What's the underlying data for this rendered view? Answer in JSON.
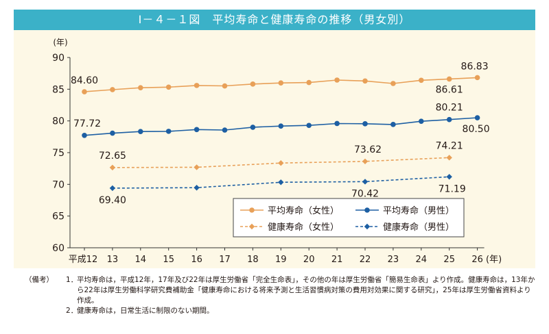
{
  "title": "Ⅰ－４－１図　平均寿命と健康寿命の推移（男女別）",
  "chart_data": {
    "type": "line",
    "title": "平均寿命と健康寿命の推移（男女別）",
    "y_unit": "(年)",
    "x_unit": "(年)",
    "ylim": [
      60,
      90
    ],
    "yticks": [
      "60",
      "65",
      "70",
      "75",
      "80",
      "85",
      "90"
    ],
    "categories": [
      "平成12",
      "13",
      "14",
      "15",
      "16",
      "17",
      "18",
      "19",
      "20",
      "21",
      "22",
      "23",
      "24",
      "25",
      "26"
    ],
    "series": [
      {
        "name": "平均寿命（女性）",
        "color": "#e8a058",
        "dash": false,
        "values": [
          84.6,
          84.93,
          85.23,
          85.33,
          85.59,
          85.52,
          85.81,
          85.99,
          86.05,
          86.44,
          86.3,
          85.9,
          86.41,
          86.61,
          86.83
        ]
      },
      {
        "name": "平均寿命（男性）",
        "color": "#1d5fa3",
        "dash": false,
        "values": [
          77.72,
          78.07,
          78.32,
          78.36,
          78.64,
          78.56,
          79.0,
          79.19,
          79.29,
          79.59,
          79.55,
          79.44,
          79.94,
          80.21,
          80.5
        ]
      },
      {
        "name": "健康寿命（女性）",
        "color": "#e8a058",
        "dash": true,
        "values": [
          null,
          72.65,
          null,
          null,
          72.69,
          null,
          null,
          73.36,
          null,
          null,
          73.62,
          null,
          null,
          74.21,
          null
        ]
      },
      {
        "name": "健康寿命（男性）",
        "color": "#1d5fa3",
        "dash": true,
        "values": [
          null,
          69.4,
          null,
          null,
          69.47,
          null,
          null,
          70.33,
          null,
          null,
          70.42,
          null,
          null,
          71.19,
          null
        ]
      }
    ],
    "data_labels": [
      {
        "series": 0,
        "index": 0,
        "text": "84.60"
      },
      {
        "series": 0,
        "index": 13,
        "text": "86.61"
      },
      {
        "series": 0,
        "index": 14,
        "text": "86.83"
      },
      {
        "series": 1,
        "index": 0,
        "text": "77.72"
      },
      {
        "series": 1,
        "index": 13,
        "text": "80.21"
      },
      {
        "series": 1,
        "index": 14,
        "text": "80.50"
      },
      {
        "series": 2,
        "index": 1,
        "text": "72.65"
      },
      {
        "series": 2,
        "index": 10,
        "text": "73.62"
      },
      {
        "series": 2,
        "index": 13,
        "text": "74.21"
      },
      {
        "series": 3,
        "index": 1,
        "text": "69.40"
      },
      {
        "series": 3,
        "index": 10,
        "text": "70.42"
      },
      {
        "series": 3,
        "index": 13,
        "text": "71.19"
      }
    ],
    "legend": [
      "平均寿命（女性）",
      "平均寿命（男性）",
      "健康寿命（女性）",
      "健康寿命（男性）"
    ],
    "legend_position": "bottom-right"
  },
  "notes": {
    "head": "（備考）",
    "items": [
      {
        "num": "1．",
        "text": "平均寿命は，平成12年，17年及び22年は厚生労働省「完全生命表」，その他の年は厚生労働省「簡易生命表」より作成。健康寿命は，13年から22年は厚生労働科学研究費補助金「健康寿命における将来予測と生活習慣病対策の費用対効果に関する研究」，25年は厚生労働省資料より作成。"
      },
      {
        "num": "2．",
        "text": "健康寿命は，日常生活に制限のない期間。"
      }
    ]
  }
}
